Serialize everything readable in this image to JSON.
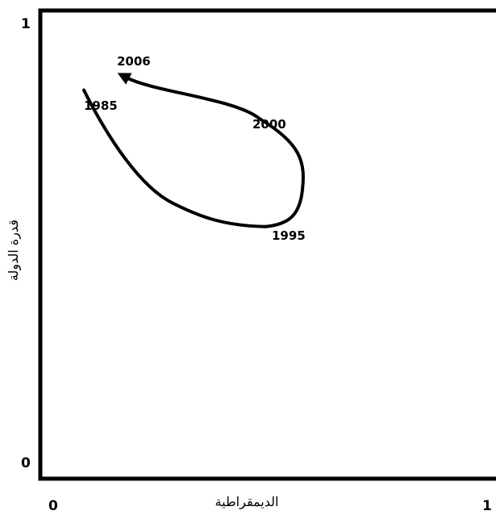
{
  "chart_data": {
    "type": "line",
    "xlabel": "الديمقراطية",
    "ylabel": "قدرة الدولة",
    "xlim": [
      0,
      1
    ],
    "ylim": [
      0,
      1
    ],
    "x_ticks": [
      "0",
      "1"
    ],
    "y_ticks": [
      "0",
      "1"
    ],
    "grid": false,
    "series": [
      {
        "points": [
          {
            "label": "1985",
            "x": 0.09,
            "y": 0.83
          },
          {
            "label": "1995",
            "x": 0.49,
            "y": 0.54
          },
          {
            "label": "2000",
            "x": 0.47,
            "y": 0.76
          },
          {
            "label": "2006",
            "x": 0.17,
            "y": 0.86
          }
        ]
      }
    ]
  }
}
